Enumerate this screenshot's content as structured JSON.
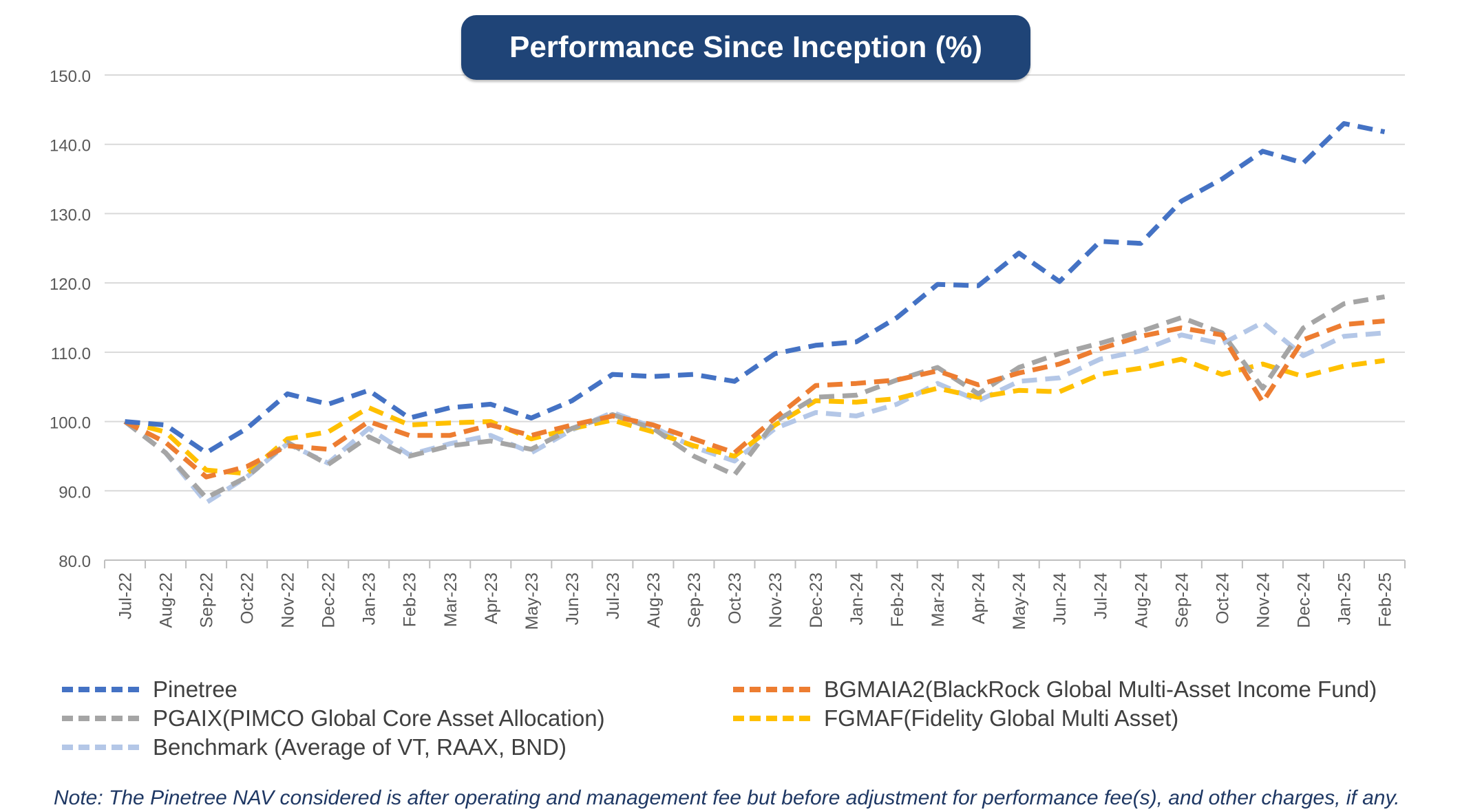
{
  "title": "Performance Since Inception (%)",
  "note": "Note: The Pinetree NAV considered is after operating and management fee but before adjustment for performance fee(s), and other charges, if any.",
  "chart_data": {
    "type": "line",
    "title": "Performance Since Inception (%)",
    "xlabel": "",
    "ylabel": "",
    "ylim": [
      80,
      150
    ],
    "yticks": [
      80,
      90,
      100,
      110,
      120,
      130,
      140,
      150
    ],
    "ytick_labels": [
      "80.0",
      "90.0",
      "100.0",
      "110.0",
      "120.0",
      "130.0",
      "140.0",
      "150.0"
    ],
    "grid": "horizontal",
    "legend_position": "bottom",
    "categories": [
      "Jul-22",
      "Aug-22",
      "Sep-22",
      "Oct-22",
      "Nov-22",
      "Dec-22",
      "Jan-23",
      "Feb-23",
      "Mar-23",
      "Apr-23",
      "May-23",
      "Jun-23",
      "Jul-23",
      "Aug-23",
      "Sep-23",
      "Oct-23",
      "Nov-23",
      "Dec-23",
      "Jan-24",
      "Feb-24",
      "Mar-24",
      "Apr-24",
      "May-24",
      "Jun-24",
      "Jul-24",
      "Aug-24",
      "Sep-24",
      "Oct-24",
      "Nov-24",
      "Dec-24",
      "Jan-25",
      "Feb-25"
    ],
    "series": [
      {
        "name": "Pinetree",
        "color": "#4472c4",
        "values": [
          100.0,
          99.5,
          95.5,
          99.0,
          104.0,
          102.5,
          104.5,
          100.5,
          102.0,
          102.5,
          100.5,
          103.0,
          106.8,
          106.5,
          106.8,
          105.8,
          109.8,
          111.0,
          111.5,
          115.0,
          119.8,
          119.6,
          124.3,
          120.2,
          126.0,
          125.7,
          131.8,
          135.0,
          139.0,
          137.3,
          143.0,
          141.8
        ]
      },
      {
        "name": "BGMAIA2(BlackRock Global Multi-Asset Income Fund)",
        "color": "#ed7d31",
        "values": [
          100.0,
          97.0,
          92.0,
          93.5,
          96.5,
          96.0,
          100.0,
          98.0,
          98.0,
          99.5,
          98.0,
          99.5,
          100.8,
          99.5,
          97.5,
          95.5,
          100.5,
          105.2,
          105.5,
          106.0,
          107.3,
          105.3,
          107.0,
          108.3,
          110.5,
          112.3,
          113.5,
          112.5,
          102.8,
          111.8,
          114.0,
          114.5
        ]
      },
      {
        "name": "PGAIX(PIMCO Global Core Asset Allocation)",
        "color": "#a5a5a5",
        "values": [
          100.0,
          95.5,
          89.0,
          92.0,
          97.0,
          93.8,
          97.8,
          95.0,
          96.5,
          97.2,
          96.0,
          99.0,
          101.0,
          99.0,
          95.0,
          92.3,
          100.0,
          103.5,
          103.8,
          106.0,
          107.8,
          104.0,
          107.8,
          109.8,
          111.3,
          113.0,
          115.0,
          112.8,
          104.8,
          113.5,
          117.0,
          118.0
        ]
      },
      {
        "name": "FGMAF(Fidelity Global Multi Asset)",
        "color": "#ffc000",
        "values": [
          100.0,
          98.5,
          93.0,
          92.5,
          97.5,
          98.5,
          102.0,
          99.5,
          99.8,
          100.0,
          97.5,
          99.0,
          100.2,
          98.5,
          96.5,
          95.0,
          99.5,
          103.0,
          102.8,
          103.3,
          104.8,
          103.5,
          104.5,
          104.3,
          106.8,
          107.7,
          109.0,
          106.8,
          108.3,
          106.5,
          108.0,
          108.8
        ]
      },
      {
        "name": "Benchmark (Average of VT, RAAX, BND)",
        "color": "#b4c7e7",
        "values": [
          100.0,
          95.5,
          88.3,
          92.0,
          96.8,
          94.0,
          99.0,
          95.2,
          96.8,
          98.0,
          95.5,
          98.8,
          101.3,
          99.2,
          96.3,
          94.3,
          99.0,
          101.3,
          100.8,
          102.5,
          105.5,
          103.0,
          105.8,
          106.3,
          109.0,
          110.2,
          112.5,
          111.2,
          114.3,
          109.5,
          112.3,
          112.8
        ]
      }
    ]
  }
}
